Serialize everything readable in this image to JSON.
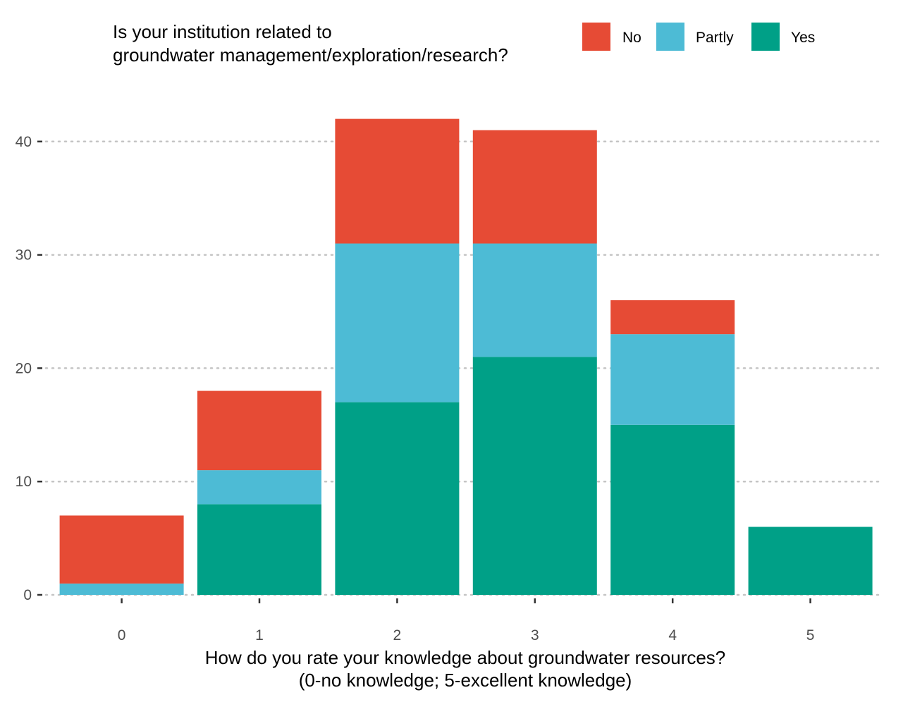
{
  "chart_data": {
    "type": "bar",
    "stacked": true,
    "categories": [
      "0",
      "1",
      "2",
      "3",
      "4",
      "5"
    ],
    "series": [
      {
        "name": "Yes",
        "color": "#00A087",
        "values": [
          0,
          8,
          17,
          21,
          15,
          6
        ]
      },
      {
        "name": "Partly",
        "color": "#4DBBD5",
        "values": [
          1,
          3,
          14,
          10,
          8,
          0
        ]
      },
      {
        "name": "No",
        "color": "#E64B35",
        "values": [
          6,
          7,
          11,
          10,
          3,
          0
        ]
      }
    ],
    "legend": {
      "title_line1": "Is your institution related to",
      "title_line2": "groundwater management/exploration/research?",
      "position": "top",
      "order": [
        "No",
        "Partly",
        "Yes"
      ]
    },
    "xlabel_line1": "How do you rate your knowledge about groundwater resources?",
    "xlabel_line2": "(0-no knowledge; 5-excellent knowledge)",
    "ylabel": "",
    "ylim": [
      0,
      42
    ],
    "yticks": [
      0,
      10,
      20,
      30,
      40
    ],
    "grid": "horizontal dotted"
  }
}
